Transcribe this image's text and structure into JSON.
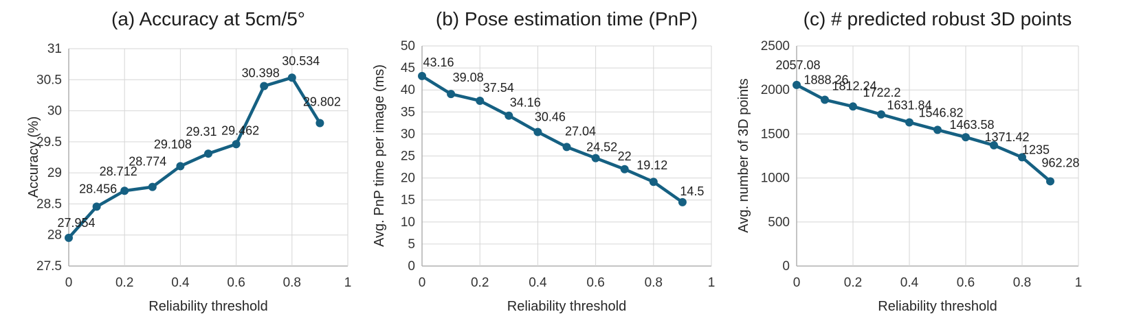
{
  "figure": {
    "background": "#ffffff",
    "accent_color": "#156082",
    "gridline_color": "#d6d6d6",
    "axis_line_color": "#b0b0b0"
  },
  "chart_data": [
    {
      "type": "line",
      "panel": "a",
      "title": "(a) Accuracy at 5cm/5°",
      "xlabel": "Reliability threshold",
      "ylabel": "Accuracy (%)",
      "x": [
        0,
        0.1,
        0.2,
        0.3,
        0.4,
        0.5,
        0.6,
        0.7,
        0.8,
        0.9
      ],
      "values": [
        27.954,
        28.456,
        28.712,
        28.774,
        29.108,
        29.31,
        29.462,
        30.398,
        30.534,
        29.802
      ],
      "point_labels": [
        "27.954",
        "28.456",
        "28.712",
        "28.774",
        "29.108",
        "29.31",
        "29.462",
        "30.398",
        "30.534",
        "29.802"
      ],
      "xlim": [
        0,
        1
      ],
      "ylim": [
        27.5,
        31
      ],
      "xtick_labels": [
        "0",
        "0.2",
        "0.4",
        "0.6",
        "0.8",
        "1"
      ],
      "ytick_labels": [
        "27.5",
        "28",
        "28.5",
        "29",
        "29.5",
        "30",
        "30.5",
        "31"
      ],
      "grid": true,
      "legend": "none",
      "line_color": "#156082",
      "label_dx": [
        11,
        2,
        -9,
        -7,
        -11,
        -10,
        6,
        -5,
        13,
        3
      ],
      "label_gap": [
        16,
        20,
        22,
        31,
        26,
        26,
        14,
        13,
        18,
        25
      ]
    },
    {
      "type": "line",
      "panel": "b",
      "title": "(b) Pose estimation time (PnP)",
      "xlabel": "Reliability threshold",
      "ylabel": "Avg. PnP time per image (ms)",
      "x": [
        0,
        0.1,
        0.2,
        0.3,
        0.4,
        0.5,
        0.6,
        0.7,
        0.8,
        0.9
      ],
      "values": [
        43.16,
        39.08,
        37.54,
        34.16,
        30.46,
        27.04,
        24.52,
        22,
        19.12,
        14.5
      ],
      "point_labels": [
        "43.16",
        "39.08",
        "37.54",
        "34.16",
        "30.46",
        "27.04",
        "24.52",
        "22",
        "19.12",
        "14.5"
      ],
      "xlim": [
        0,
        1
      ],
      "ylim": [
        0,
        50
      ],
      "xtick_labels": [
        "0",
        "0.2",
        "0.4",
        "0.6",
        "0.8",
        "1"
      ],
      "ytick_labels": [
        "0",
        "5",
        "10",
        "15",
        "20",
        "25",
        "30",
        "35",
        "40",
        "45",
        "50"
      ],
      "grid": true,
      "legend": "none",
      "line_color": "#156082",
      "label_dx": [
        24,
        25,
        27,
        24,
        18,
        20,
        9,
        0,
        -2,
        14
      ],
      "label_gap": [
        14,
        18,
        13,
        13,
        16,
        17,
        10,
        13,
        18,
        10
      ]
    },
    {
      "type": "line",
      "panel": "c",
      "title": "(c) # predicted robust 3D points",
      "xlabel": "Reliability threshold",
      "ylabel": "Avg. number of 3D points",
      "x": [
        0,
        0.1,
        0.2,
        0.3,
        0.4,
        0.5,
        0.6,
        0.7,
        0.8,
        0.9
      ],
      "values": [
        2057.08,
        1888.26,
        1812.24,
        1722.2,
        1631.84,
        1546.82,
        1463.58,
        1371.42,
        1235,
        962.28
      ],
      "point_labels": [
        "2057.08",
        "1888.26",
        "1812.24",
        "1722.2",
        "1631.84",
        "1546.82",
        "1463.58",
        "1371.42",
        "1235",
        "962.28"
      ],
      "xlim": [
        0,
        1
      ],
      "ylim": [
        0,
        2500
      ],
      "xtick_labels": [
        "0",
        "0.2",
        "0.4",
        "0.6",
        "0.8",
        "1"
      ],
      "ytick_labels": [
        "0",
        "500",
        "1000",
        "1500",
        "2000",
        "2500"
      ],
      "grid": true,
      "legend": "none",
      "line_color": "#156082",
      "label_dx": [
        2,
        2,
        2,
        1,
        0,
        5,
        9,
        19,
        20,
        15
      ],
      "label_gap": [
        23,
        23,
        24,
        26,
        19,
        19,
        12,
        6,
        5,
        21
      ]
    }
  ]
}
